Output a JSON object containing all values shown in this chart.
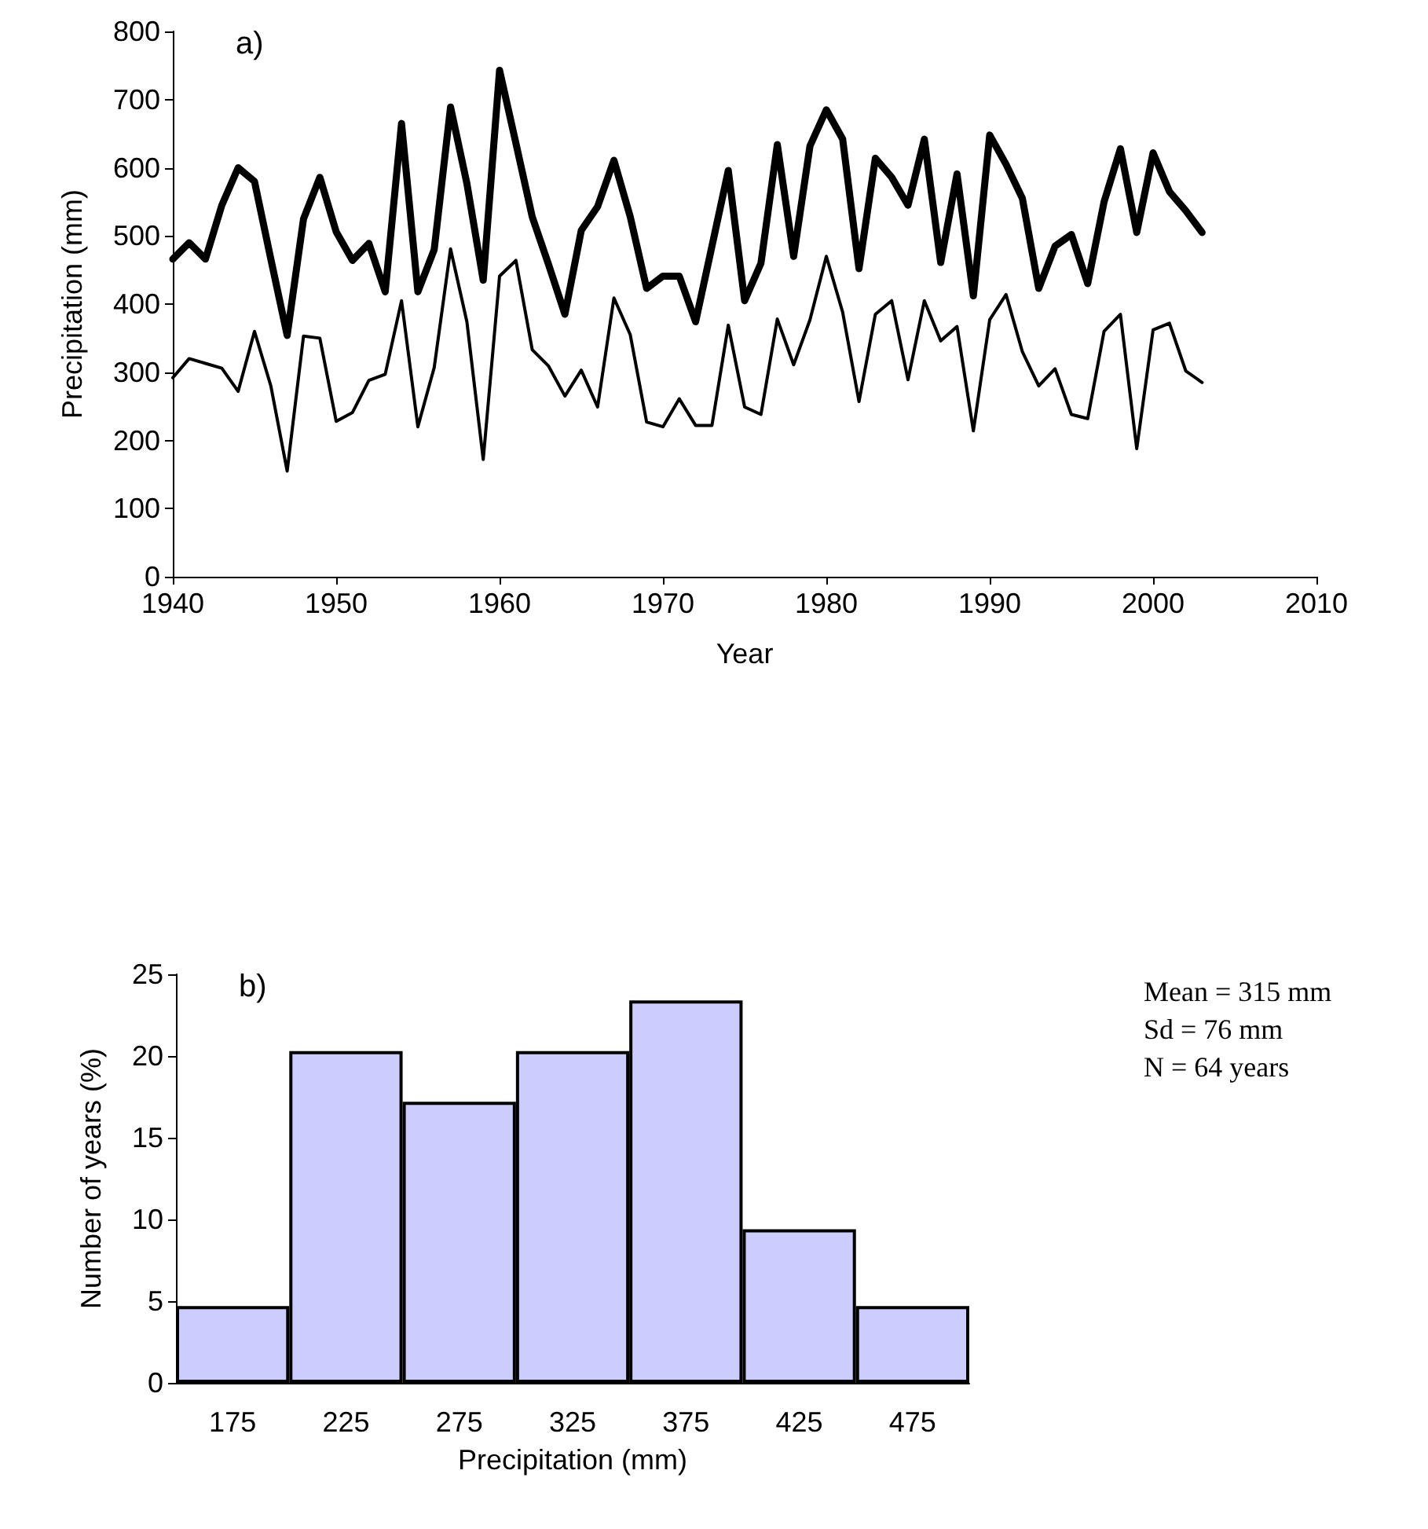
{
  "chart_data": [
    {
      "type": "line",
      "xlabel": "Year",
      "ylabel": "Precipitation (mm)",
      "annotations": [
        "a)"
      ],
      "x": [
        1940,
        1941,
        1942,
        1943,
        1944,
        1945,
        1946,
        1947,
        1948,
        1949,
        1950,
        1951,
        1952,
        1953,
        1954,
        1955,
        1956,
        1957,
        1958,
        1959,
        1960,
        1961,
        1962,
        1963,
        1964,
        1965,
        1966,
        1967,
        1968,
        1969,
        1970,
        1971,
        1972,
        1973,
        1974,
        1975,
        1976,
        1977,
        1978,
        1979,
        1980,
        1981,
        1982,
        1983,
        1984,
        1985,
        1986,
        1987,
        1988,
        1989,
        1990,
        1991,
        1992,
        1993,
        1994,
        1995,
        1996,
        1997,
        1998,
        1999,
        2000,
        2001,
        2002,
        2003
      ],
      "series": [
        {
          "color": "#000000",
          "values": [
            466,
            490,
            466,
            545,
            600,
            580,
            466,
            354,
            525,
            586,
            506,
            464,
            489,
            418,
            665,
            418,
            480,
            689,
            577,
            435,
            743,
            636,
            528,
            458,
            385,
            508,
            543,
            611,
            528,
            423,
            441,
            441,
            374,
            485,
            596,
            405,
            460,
            634,
            470,
            632,
            685,
            642,
            452,
            614,
            586,
            545,
            642,
            461,
            591,
            412,
            648,
            605,
            555,
            423,
            485,
            502,
            430,
            550,
            628,
            505,
            622,
            565,
            537,
            505
          ]
        },
        {
          "color": "#000000",
          "values": [
            292,
            320,
            313,
            306,
            272,
            360,
            280,
            155,
            353,
            350,
            228,
            241,
            288,
            297,
            405,
            220,
            307,
            481,
            374,
            172,
            441,
            464,
            333,
            309,
            265,
            303,
            249,
            409,
            355,
            227,
            220,
            261,
            222,
            222,
            369,
            249,
            238,
            378,
            311,
            377,
            470,
            388,
            257,
            385,
            405,
            289,
            405,
            346,
            367,
            214,
            377,
            414,
            330,
            280,
            305,
            238,
            232,
            360,
            385,
            188,
            362,
            372,
            302,
            285
          ]
        }
      ],
      "xlim": [
        1940,
        2010
      ],
      "xticks": [
        1940,
        1950,
        1960,
        1970,
        1980,
        1990,
        2000,
        2010
      ],
      "ylim": [
        0,
        800
      ],
      "yticks": [
        0,
        100,
        200,
        300,
        400,
        500,
        600,
        700,
        800
      ],
      "grid": false,
      "marker": "none",
      "line_style": "solid"
    },
    {
      "type": "bar",
      "xlabel": "Precipitation (mm)",
      "ylabel": "Number of years (%)",
      "annotations": [
        "b)",
        "Mean = 315 mm",
        "Sd = 76 mm",
        "N = 64 years"
      ],
      "categories": [
        "175",
        "225",
        "275",
        "325",
        "375",
        "425",
        "475"
      ],
      "values": [
        4.7,
        20.3,
        17.2,
        20.3,
        23.4,
        9.4,
        4.7
      ],
      "color": "#ccccff",
      "ylim": [
        0,
        25
      ],
      "yticks": [
        0,
        5,
        10,
        15,
        20,
        25
      ],
      "grid": false
    }
  ]
}
